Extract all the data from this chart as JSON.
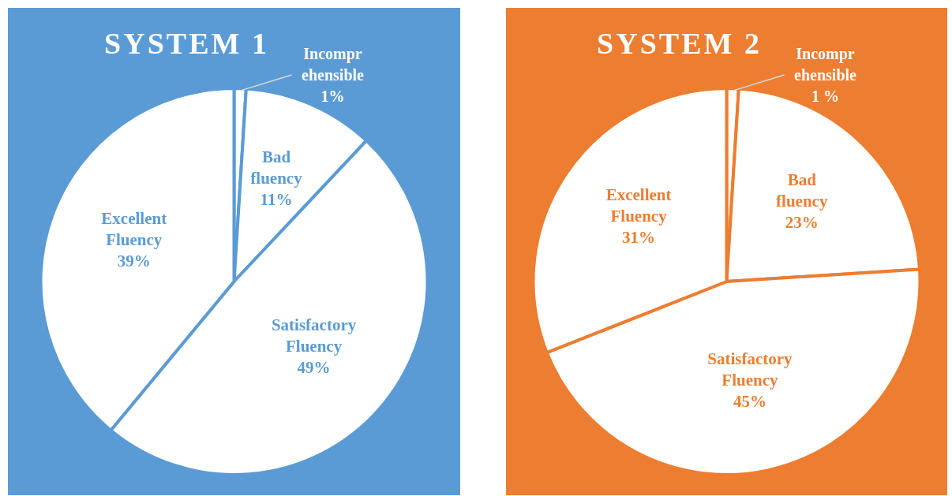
{
  "chart_data": [
    {
      "type": "pie",
      "title": "SYSTEM 1",
      "categories": [
        "Incomprehensible",
        "Bad fluency",
        "Satisfactory Fluency",
        "Excellent Fluency"
      ],
      "values": [
        1,
        11,
        49,
        39
      ],
      "colors": [
        "#ffffff",
        "#ffffff",
        "#ffffff",
        "#ffffff"
      ],
      "value_labels": [
        "1%",
        "11%",
        "49%",
        "39%"
      ]
    },
    {
      "type": "pie",
      "title": "SYSTEM 2",
      "categories": [
        "Incomprehensible",
        "Bad fluency",
        "Satisfactory Fluency",
        "Excellent Fluency"
      ],
      "values": [
        1,
        23,
        45,
        31
      ],
      "colors": [
        "#ffffff",
        "#ffffff",
        "#ffffff",
        "#ffffff"
      ],
      "value_labels": [
        "1 %",
        "23%",
        "45%",
        "31%"
      ]
    }
  ]
}
